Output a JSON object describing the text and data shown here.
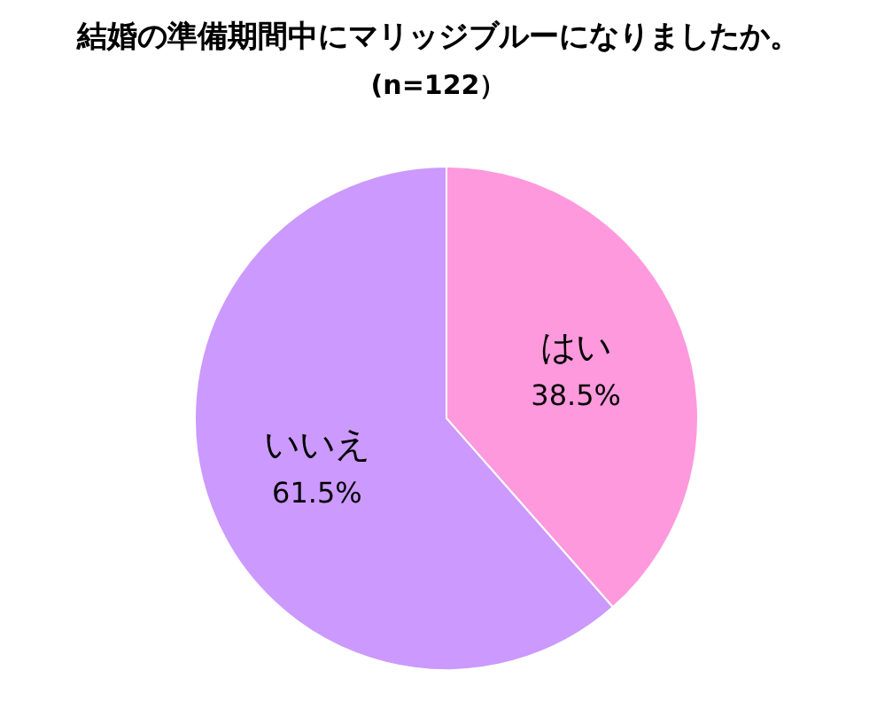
{
  "chart_data": {
    "type": "pie",
    "title": "結婚の準備期間中にマリッジブルーになりましたか。",
    "subtitle": "(n=122）",
    "categories": [
      "はい",
      "いいえ"
    ],
    "values": [
      38.5,
      61.5
    ],
    "value_labels": [
      "38.5%",
      "61.5%"
    ],
    "colors": [
      "#ff99dd",
      "#cc99ff"
    ],
    "legend": false
  }
}
